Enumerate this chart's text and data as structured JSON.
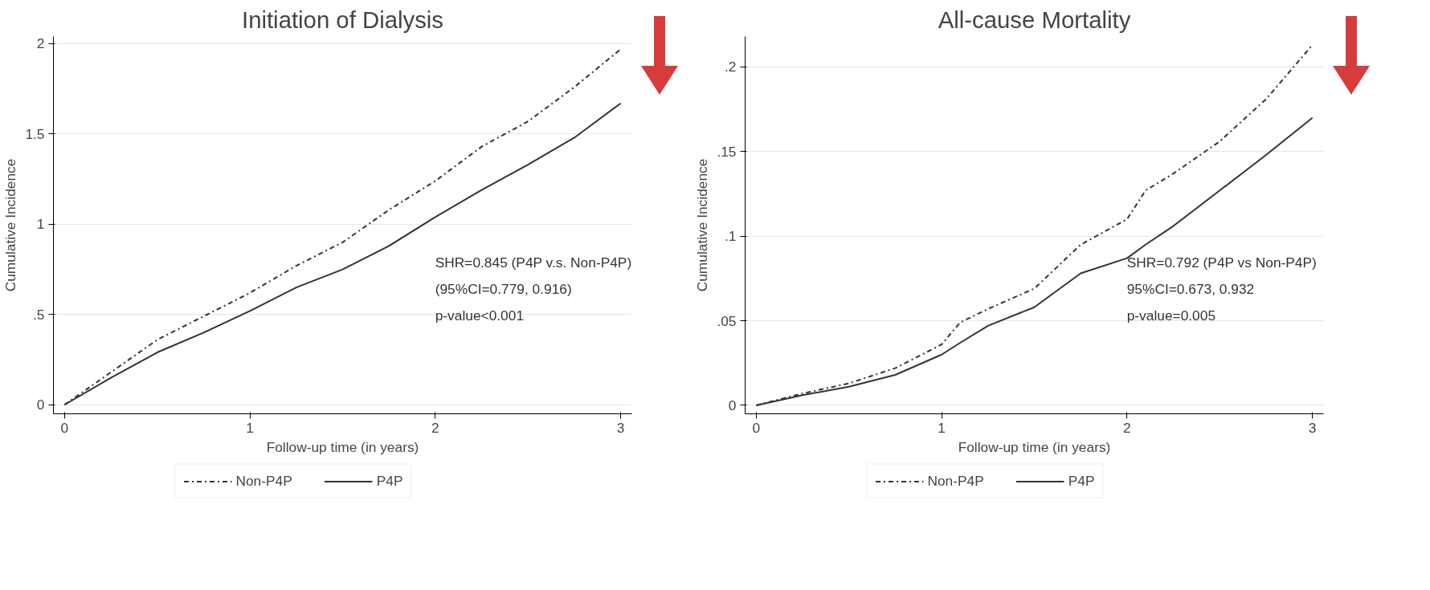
{
  "chart_data": [
    {
      "type": "line",
      "title": "Initiation of Dialysis",
      "xlabel": "Follow-up time (in years)",
      "ylabel": "Cumulative Incidence",
      "x": [
        0,
        0.25,
        0.5,
        0.75,
        1,
        1.25,
        1.5,
        1.75,
        2,
        2.25,
        2.5,
        2.75,
        3
      ],
      "series": [
        {
          "name": "Non-P4P",
          "color": "#333333",
          "line_style": "dashdot",
          "values": [
            0,
            0.18,
            0.36,
            0.49,
            0.62,
            0.77,
            0.9,
            1.08,
            1.24,
            1.43,
            1.57,
            1.76,
            1.97
          ]
        },
        {
          "name": "P4P",
          "color": "#333333",
          "line_style": "solid",
          "values": [
            0,
            0.15,
            0.29,
            0.4,
            0.52,
            0.65,
            0.75,
            0.88,
            1.04,
            1.19,
            1.33,
            1.48,
            1.67
          ]
        }
      ],
      "xlim": [
        -0.06,
        3.06
      ],
      "ylim": [
        -0.05,
        2.04
      ],
      "xticks": [
        0,
        1,
        2,
        3
      ],
      "yticks": [
        0,
        {
          "value": 0.5,
          "label": ".5"
        },
        1,
        1.5,
        2
      ],
      "grid": "y",
      "legend": "bottom",
      "marker": "none",
      "annotations": [
        "SHR=0.845 (P4P v.s. Non-P4P)",
        "(95%CI=0.779, 0.916)",
        "p-value<0.001"
      ]
    },
    {
      "type": "line",
      "title": "All-cause Mortality",
      "xlabel": "Follow-up time (in years)",
      "ylabel": "Cumulative Incidence",
      "x": [
        0,
        0.25,
        0.5,
        0.75,
        1,
        1.1,
        1.25,
        1.5,
        1.75,
        2,
        2.1,
        2.25,
        2.5,
        2.75,
        3
      ],
      "series": [
        {
          "name": "Non-P4P",
          "color": "#333333",
          "line_style": "dashdot",
          "values": [
            0,
            0.007,
            0.013,
            0.022,
            0.036,
            0.049,
            0.057,
            0.069,
            0.095,
            0.11,
            0.127,
            0.137,
            0.156,
            0.181,
            0.213
          ]
        },
        {
          "name": "P4P",
          "color": "#333333",
          "line_style": "solid",
          "values": [
            0,
            0.006,
            0.011,
            0.018,
            0.03,
            0.037,
            0.047,
            0.058,
            0.078,
            0.087,
            0.095,
            0.106,
            0.127,
            0.148,
            0.17
          ]
        }
      ],
      "xlim": [
        -0.06,
        3.06
      ],
      "ylim": [
        -0.005,
        0.218
      ],
      "xticks": [
        0,
        1,
        2,
        3
      ],
      "yticks": [
        0,
        {
          "value": 0.05,
          "label": ".05"
        },
        {
          "value": 0.1,
          "label": ".1"
        },
        {
          "value": 0.15,
          "label": ".15"
        },
        {
          "value": 0.2,
          "label": ".2"
        }
      ],
      "grid": "y",
      "legend": "bottom",
      "marker": "none",
      "annotations": [
        "SHR=0.792 (P4P vs Non-P4P)",
        "95%CI=0.673, 0.932",
        "p-value=0.005"
      ]
    }
  ]
}
